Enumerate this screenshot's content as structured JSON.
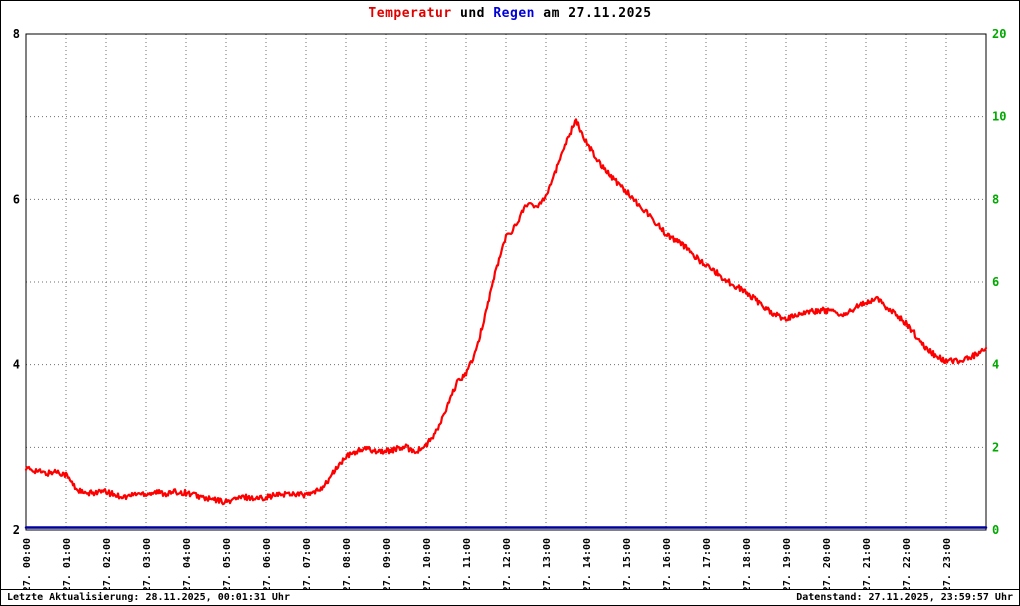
{
  "title": {
    "part1": "Temperatur",
    "part2": " und ",
    "part3": "Regen",
    "part4": " am 27.11.2025"
  },
  "footer": {
    "left": "Letzte Aktualisierung: 28.11.2025, 00:01:31 Uhr",
    "right": "Datenstand: 27.11.2025, 23:59:57 Uhr"
  },
  "colors": {
    "temperature": "#ff0000",
    "rain": "#0000a0",
    "right_axis_labels": "#00a800",
    "grid": "#6e6e6e",
    "border": "#000000",
    "background": "#ffffff"
  },
  "chart_data": {
    "type": "line",
    "title": "Temperatur und Regen am 27.11.2025",
    "grid": true,
    "legend": "none",
    "x_axis": {
      "hours": 24,
      "ticks": [
        "27. 00:00",
        "27. 01:00",
        "27. 02:00",
        "27. 03:00",
        "27. 04:00",
        "27. 05:00",
        "27. 06:00",
        "27. 07:00",
        "27. 08:00",
        "27. 09:00",
        "27. 10:00",
        "27. 11:00",
        "27. 12:00",
        "27. 13:00",
        "27. 14:00",
        "27. 15:00",
        "27. 16:00",
        "27. 17:00",
        "27. 18:00",
        "27. 19:00",
        "27. 20:00",
        "27. 21:00",
        "27. 22:00",
        "27. 23:00"
      ]
    },
    "left_axis": {
      "name": "Temperatur",
      "min": 2,
      "max": 8,
      "ticks": [
        8,
        6,
        4,
        2
      ]
    },
    "right_axis": {
      "name": "Regen",
      "max": 20,
      "tick_labels_top_to_bottom": [
        "20",
        "10",
        "8",
        "6",
        "4",
        "2",
        "0"
      ]
    },
    "series": [
      {
        "name": "Temperatur",
        "color": "#ff0000",
        "axis": "left",
        "width": 2.2,
        "noise": 0.035,
        "x": [
          0,
          0.25,
          0.5,
          0.75,
          1,
          1.25,
          1.5,
          1.75,
          2,
          2.25,
          2.5,
          2.75,
          3,
          3.25,
          3.5,
          3.75,
          4,
          4.25,
          4.5,
          4.75,
          5,
          5.25,
          5.5,
          5.75,
          6,
          6.25,
          6.5,
          6.75,
          7,
          7.25,
          7.5,
          7.75,
          8,
          8.25,
          8.5,
          8.75,
          9,
          9.25,
          9.5,
          9.75,
          10,
          10.25,
          10.5,
          10.75,
          11,
          11.25,
          11.5,
          11.75,
          12,
          12.25,
          12.5,
          12.75,
          13,
          13.25,
          13.5,
          13.75,
          14,
          14.25,
          14.5,
          14.75,
          15,
          15.25,
          15.5,
          15.75,
          16,
          16.25,
          16.5,
          16.75,
          17,
          17.25,
          17.5,
          17.75,
          18,
          18.25,
          18.5,
          18.75,
          19,
          19.25,
          19.5,
          19.75,
          20,
          20.25,
          20.5,
          20.75,
          21,
          21.25,
          21.5,
          21.75,
          22,
          22.25,
          22.5,
          22.75,
          23,
          23.25,
          23.5,
          23.75,
          24
        ],
        "values": [
          2.74,
          2.72,
          2.68,
          2.71,
          2.67,
          2.5,
          2.43,
          2.46,
          2.46,
          2.42,
          2.4,
          2.44,
          2.44,
          2.46,
          2.44,
          2.46,
          2.45,
          2.42,
          2.38,
          2.36,
          2.34,
          2.38,
          2.4,
          2.38,
          2.4,
          2.42,
          2.44,
          2.44,
          2.42,
          2.46,
          2.56,
          2.74,
          2.88,
          2.95,
          2.98,
          2.96,
          2.95,
          2.98,
          3.0,
          2.95,
          3.02,
          3.18,
          3.45,
          3.76,
          3.9,
          4.15,
          4.65,
          5.15,
          5.55,
          5.68,
          5.95,
          5.9,
          6.05,
          6.35,
          6.7,
          6.95,
          6.7,
          6.5,
          6.35,
          6.22,
          6.1,
          5.97,
          5.85,
          5.72,
          5.58,
          5.5,
          5.42,
          5.3,
          5.2,
          5.12,
          5.02,
          4.95,
          4.88,
          4.78,
          4.68,
          4.6,
          4.55,
          4.6,
          4.64,
          4.65,
          4.66,
          4.62,
          4.6,
          4.7,
          4.75,
          4.8,
          4.7,
          4.6,
          4.5,
          4.35,
          4.2,
          4.1,
          4.05,
          4.04,
          4.08,
          4.12,
          4.2
        ]
      },
      {
        "name": "Regen",
        "color": "#0000a0",
        "axis": "right",
        "width": 2.5,
        "noise": 0,
        "x": [
          0,
          24
        ],
        "values": [
          0,
          0
        ]
      }
    ]
  }
}
